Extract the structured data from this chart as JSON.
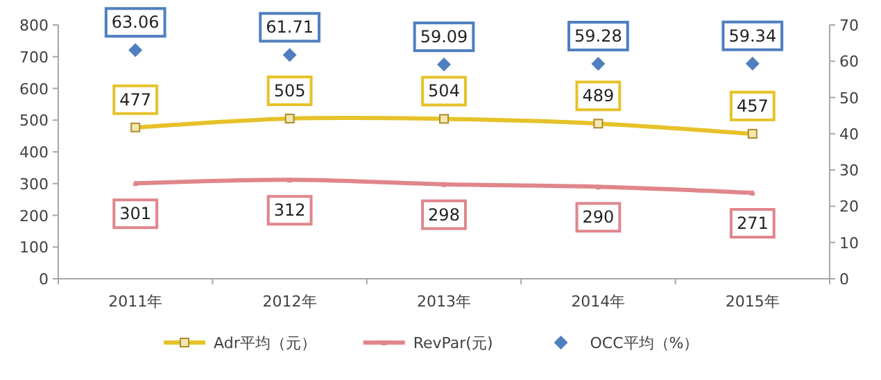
{
  "chart_data": {
    "type": "line",
    "categories": [
      "2011年",
      "2012年",
      "2013年",
      "2014年",
      "2015年"
    ],
    "ylim": [
      0,
      800
    ],
    "yticks": [
      0,
      100,
      200,
      300,
      400,
      500,
      600,
      700,
      800
    ],
    "y2lim": [
      0,
      70
    ],
    "y2ticks": [
      0,
      10,
      20,
      30,
      40,
      50,
      60,
      70
    ],
    "data_labels": true,
    "legend": "bottom",
    "grid": false,
    "series": [
      {
        "name": "Adr平均（元）",
        "color": "#e6c229",
        "marker": "square",
        "values": [
          477,
          505,
          504,
          489,
          457
        ]
      },
      {
        "name": "RevPar(元)",
        "color": "#e0868b",
        "marker": "triangle",
        "values": [
          301,
          312,
          298,
          290,
          271
        ]
      },
      {
        "name": "OCC平均（%）",
        "type": "scatter",
        "axis": "y2",
        "color": "#4f7fbf",
        "marker": "diamond",
        "values": [
          63.06,
          61.71,
          59.09,
          59.28,
          59.34
        ]
      }
    ]
  }
}
